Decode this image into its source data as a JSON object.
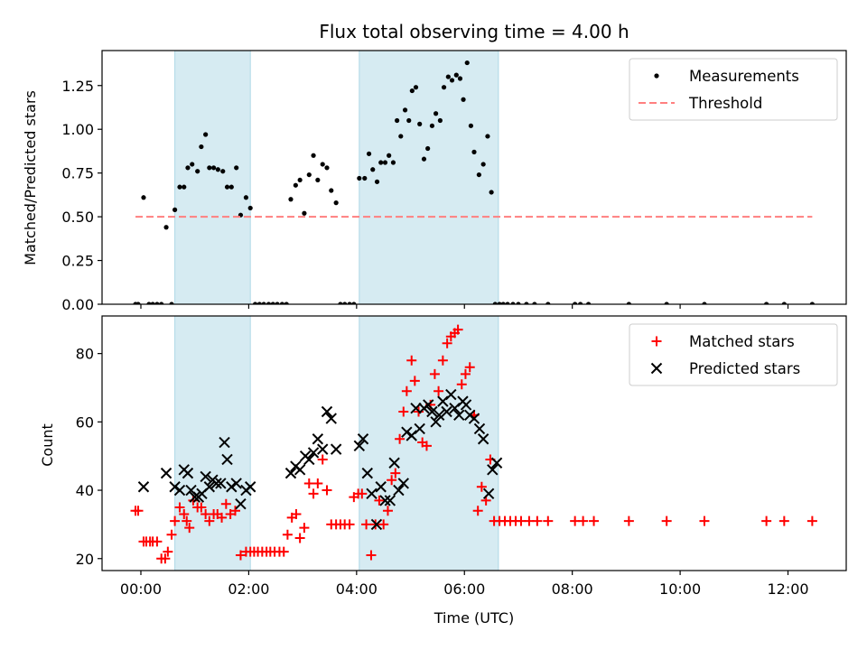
{
  "chart_data": [
    {
      "type": "scatter",
      "title": "Flux total observing time = 4.00 h",
      "xlabel": "",
      "ylabel": "Matched/Predicted stars",
      "xlim": [
        -0.72,
        13.08
      ],
      "ylim": [
        0,
        1.45
      ],
      "yticks": [
        0,
        0.25,
        0.5,
        0.75,
        1.0,
        1.25
      ],
      "ytick_labels": [
        "0.00",
        "0.25",
        "0.50",
        "0.75",
        "1.00",
        "1.25"
      ],
      "xticks": [
        0,
        2,
        4,
        6,
        8,
        10,
        12
      ],
      "show_xtick_labels": false,
      "legend_position": "top-right",
      "shaded_intervals": [
        [
          0.63,
          2.03
        ],
        [
          4.05,
          6.63
        ]
      ],
      "series": [
        {
          "name": "Measurements",
          "kind": "points",
          "color": "#000000",
          "x": [
            -0.1,
            -0.05,
            0.05,
            0.15,
            0.22,
            0.3,
            0.38,
            0.47,
            0.57,
            0.63,
            0.72,
            0.8,
            0.87,
            0.95,
            1.05,
            1.12,
            1.2,
            1.27,
            1.35,
            1.43,
            1.52,
            1.6,
            1.68,
            1.77,
            1.85,
            1.95,
            2.03,
            2.12,
            2.2,
            2.28,
            2.37,
            2.45,
            2.53,
            2.62,
            2.7,
            2.78,
            2.87,
            2.95,
            3.03,
            3.12,
            3.2,
            3.28,
            3.37,
            3.45,
            3.53,
            3.62,
            3.7,
            3.78,
            3.87,
            3.95,
            4.05,
            4.15,
            4.23,
            4.3,
            4.38,
            4.45,
            4.53,
            4.6,
            4.68,
            4.75,
            4.82,
            4.9,
            4.97,
            5.03,
            5.1,
            5.17,
            5.25,
            5.32,
            5.4,
            5.47,
            5.55,
            5.62,
            5.7,
            5.77,
            5.85,
            5.92,
            5.98,
            6.05,
            6.12,
            6.18,
            6.27,
            6.35,
            6.43,
            6.5,
            6.57,
            6.65,
            6.72,
            6.8,
            6.9,
            7.0,
            7.15,
            7.3,
            7.55,
            8.05,
            8.15,
            8.3,
            9.05,
            9.75,
            10.45,
            11.6,
            11.93,
            12.45
          ],
          "y": [
            0,
            0,
            0.61,
            0,
            0,
            0,
            0,
            0.44,
            0,
            0.54,
            0.67,
            0.67,
            0.78,
            0.8,
            0.76,
            0.9,
            0.97,
            0.78,
            0.78,
            0.77,
            0.76,
            0.67,
            0.67,
            0.78,
            0.51,
            0.61,
            0.55,
            0,
            0,
            0,
            0,
            0,
            0,
            0,
            0,
            0.6,
            0.68,
            0.71,
            0.52,
            0.74,
            0.85,
            0.71,
            0.8,
            0.78,
            0.65,
            0.58,
            0,
            0,
            0,
            0,
            0.72,
            0.72,
            0.86,
            0.77,
            0.7,
            0.81,
            0.81,
            0.85,
            0.81,
            1.05,
            0.96,
            1.11,
            1.05,
            1.22,
            1.24,
            1.03,
            0.83,
            0.89,
            1.02,
            1.09,
            1.05,
            1.24,
            1.3,
            1.28,
            1.31,
            1.29,
            1.17,
            1.38,
            1.02,
            0.87,
            0.74,
            0.8,
            0.96,
            0.64,
            0,
            0,
            0,
            0,
            0,
            0,
            0,
            0,
            0,
            0,
            0,
            0,
            0,
            0,
            0,
            0,
            0,
            0
          ]
        },
        {
          "name": "Threshold",
          "kind": "dashed-line",
          "color": "#ff7f7f",
          "x": [
            -0.1,
            12.45
          ],
          "y": [
            0.5,
            0.5
          ]
        }
      ]
    },
    {
      "type": "scatter",
      "title": "",
      "xlabel": "Time (UTC)",
      "ylabel": "Count",
      "xlim": [
        -0.72,
        13.08
      ],
      "ylim": [
        16.5,
        91
      ],
      "yticks": [
        20,
        40,
        60,
        80
      ],
      "ytick_labels": [
        "20",
        "40",
        "60",
        "80"
      ],
      "xticks": [
        0,
        2,
        4,
        6,
        8,
        10,
        12
      ],
      "xtick_labels": [
        "00:00",
        "02:00",
        "04:00",
        "06:00",
        "08:00",
        "10:00",
        "12:00"
      ],
      "legend_position": "top-right",
      "shaded_intervals": [
        [
          0.63,
          2.03
        ],
        [
          4.05,
          6.63
        ]
      ],
      "series": [
        {
          "name": "Matched stars",
          "kind": "plus",
          "color": "#ff0000",
          "x": [
            -0.1,
            -0.05,
            0.05,
            0.1,
            0.17,
            0.22,
            0.3,
            0.38,
            0.45,
            0.5,
            0.57,
            0.63,
            0.72,
            0.8,
            0.85,
            0.9,
            0.97,
            1.05,
            1.12,
            1.2,
            1.27,
            1.35,
            1.42,
            1.5,
            1.58,
            1.66,
            1.75,
            1.85,
            1.95,
            2.03,
            2.1,
            2.17,
            2.25,
            2.33,
            2.4,
            2.48,
            2.57,
            2.65,
            2.72,
            2.8,
            2.88,
            2.95,
            3.03,
            3.12,
            3.2,
            3.28,
            3.37,
            3.45,
            3.53,
            3.62,
            3.7,
            3.78,
            3.87,
            3.95,
            4.03,
            4.1,
            4.18,
            4.27,
            4.35,
            4.42,
            4.5,
            4.58,
            4.65,
            4.72,
            4.8,
            4.87,
            4.93,
            5.02,
            5.08,
            5.15,
            5.22,
            5.3,
            5.37,
            5.45,
            5.52,
            5.6,
            5.68,
            5.75,
            5.82,
            5.88,
            5.95,
            6.02,
            6.1,
            6.18,
            6.25,
            6.32,
            6.4,
            6.48,
            6.55,
            6.65,
            6.75,
            6.85,
            6.95,
            7.05,
            7.2,
            7.35,
            7.55,
            8.05,
            8.2,
            8.4,
            9.05,
            9.75,
            10.45,
            11.6,
            11.93,
            12.45
          ],
          "y": [
            34,
            34,
            25,
            25,
            25,
            25,
            25,
            20,
            20,
            22,
            27,
            31,
            35,
            33,
            31,
            29,
            37,
            35,
            35,
            33,
            31,
            33,
            33,
            32,
            36,
            33,
            34,
            21,
            22,
            22,
            22,
            22,
            22,
            22,
            22,
            22,
            22,
            22,
            27,
            32,
            33,
            26,
            29,
            42,
            39,
            42,
            49,
            40,
            30,
            30,
            30,
            30,
            30,
            38,
            39,
            39,
            30,
            21,
            30,
            37,
            30,
            34,
            43,
            45,
            55,
            63,
            69,
            78,
            72,
            63,
            54,
            53,
            65,
            74,
            69,
            78,
            83,
            85,
            86,
            87,
            71,
            74,
            76,
            62,
            34,
            41,
            37,
            49,
            31,
            31,
            31,
            31,
            31,
            31,
            31,
            31,
            31,
            31,
            31,
            31,
            31,
            31,
            31,
            31,
            31,
            31
          ]
        },
        {
          "name": "Predicted stars",
          "kind": "x",
          "color": "#000000",
          "x": [
            0.05,
            0.47,
            0.63,
            0.72,
            0.8,
            0.87,
            0.93,
            1.0,
            1.07,
            1.13,
            1.2,
            1.27,
            1.33,
            1.4,
            1.48,
            1.55,
            1.6,
            1.68,
            1.77,
            1.85,
            1.95,
            2.03,
            2.78,
            2.87,
            2.95,
            3.05,
            3.12,
            3.2,
            3.28,
            3.37,
            3.45,
            3.53,
            3.62,
            4.05,
            4.12,
            4.2,
            4.28,
            4.37,
            4.45,
            4.53,
            4.62,
            4.7,
            4.78,
            4.87,
            4.93,
            5.02,
            5.1,
            5.17,
            5.25,
            5.33,
            5.4,
            5.47,
            5.53,
            5.6,
            5.67,
            5.75,
            5.82,
            5.9,
            5.97,
            6.03,
            6.1,
            6.18,
            6.28,
            6.35,
            6.45,
            6.52,
            6.6
          ],
          "y": [
            41,
            45,
            41,
            40,
            46,
            45,
            40,
            38,
            38,
            39,
            44,
            41,
            43,
            42,
            42,
            54,
            49,
            41,
            42,
            36,
            40,
            41,
            45,
            47,
            46,
            50,
            49,
            51,
            55,
            52,
            63,
            61,
            52,
            53,
            55,
            45,
            39,
            30,
            41,
            37,
            37,
            48,
            40,
            42,
            57,
            56,
            64,
            58,
            64,
            65,
            63,
            60,
            62,
            66,
            63,
            68,
            64,
            62,
            66,
            65,
            62,
            61,
            58,
            55,
            39,
            46,
            48
          ]
        }
      ]
    }
  ]
}
